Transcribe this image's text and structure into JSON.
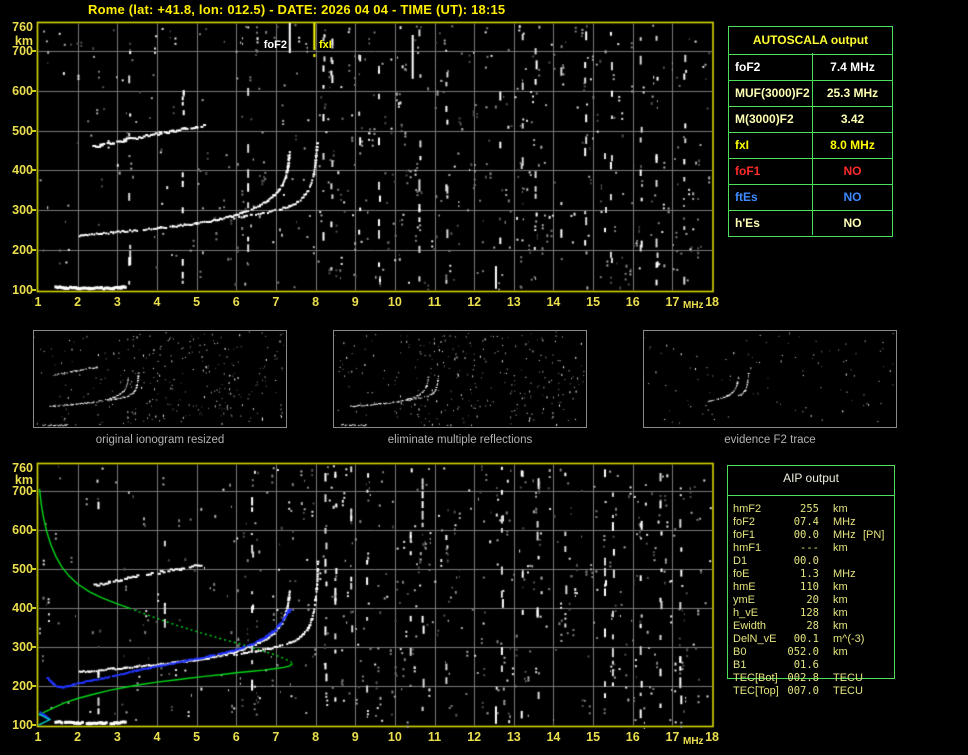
{
  "title": "Rome (lat: +41.8, lon: 012.5) - DATE: 2026 04 04 - TIME (UT): 18:15",
  "axes": {
    "x_ticks": [
      1,
      2,
      3,
      4,
      5,
      6,
      7,
      8,
      9,
      10,
      11,
      12,
      13,
      14,
      15,
      16,
      17,
      18
    ],
    "y_ticks": [
      760,
      700,
      600,
      500,
      400,
      300,
      200,
      100
    ],
    "x_unit": "MHz",
    "y_unit": "km"
  },
  "colors": {
    "title": "#ffee00",
    "axis_label": "#ecdf4e",
    "plot_border": "#d8d800",
    "grid": "#787878",
    "table_border": "#4ce05c",
    "trace_white": "#ffffff",
    "trace_blue": "#2235ff",
    "profile_green": "#00d818",
    "valley_cyan": "#00c8c8",
    "caption_gray": "#b2b2b2",
    "aip_text": "#e4e47e"
  },
  "autoscala_table": {
    "title": "AUTOSCALA output",
    "rows": [
      {
        "label": "foF2",
        "value": "7.4 MHz",
        "color": "white"
      },
      {
        "label": "MUF(3000)F2",
        "value": "25.3 MHz",
        "color": "pale"
      },
      {
        "label": "M(3000)F2",
        "value": "3.42",
        "color": "pale"
      },
      {
        "label": "fxI",
        "value": "8.0 MHz",
        "color": "yellow"
      },
      {
        "label": "foF1",
        "value": "NO",
        "color": "red"
      },
      {
        "label": "ftEs",
        "value": "NO",
        "color": "blue"
      },
      {
        "label": "h'Es",
        "value": "NO",
        "color": "pale"
      }
    ]
  },
  "aip_table": {
    "title": "AIP output",
    "rows": [
      {
        "label": "hmF2",
        "value": "255",
        "unit": "km",
        "extra": ""
      },
      {
        "label": "foF2",
        "value": "07.4",
        "unit": "MHz",
        "extra": ""
      },
      {
        "label": "foF1",
        "value": "00.0",
        "unit": "MHz",
        "extra": "[PN]"
      },
      {
        "label": "hmF1",
        "value": "---",
        "unit": "km",
        "extra": ""
      },
      {
        "label": "D1",
        "value": "00.0",
        "unit": "",
        "extra": ""
      },
      {
        "label": "foE",
        "value": "1.3",
        "unit": "MHz",
        "extra": ""
      },
      {
        "label": "hmE",
        "value": "110",
        "unit": "km",
        "extra": ""
      },
      {
        "label": "ymE",
        "value": "20",
        "unit": "km",
        "extra": ""
      },
      {
        "label": "h_vE",
        "value": "128",
        "unit": "km",
        "extra": ""
      },
      {
        "label": "Ewidth",
        "value": "28",
        "unit": "km",
        "extra": ""
      },
      {
        "label": "DelN_vE",
        "value": "00.1",
        "unit": "m^(-3)",
        "extra": ""
      },
      {
        "label": "B0",
        "value": "052.0",
        "unit": "km",
        "extra": ""
      },
      {
        "label": "B1",
        "value": "01.6",
        "unit": "",
        "extra": ""
      },
      {
        "label": "TEC[Bot]",
        "value": "002.8",
        "unit": "TECU",
        "extra": ""
      },
      {
        "label": "TEC[Top]",
        "value": "007.0",
        "unit": "TECU",
        "extra": ""
      }
    ]
  },
  "thumbnails": [
    {
      "caption": "original ionogram resized",
      "series": [
        "E-trace",
        "F2-ordinary",
        "F2-extraordinary",
        "second-hop"
      ]
    },
    {
      "caption": "eliminate multiple reflections",
      "series": [
        "E-trace",
        "F2-ordinary",
        "F2-extraordinary"
      ]
    },
    {
      "caption": "evidence F2 trace",
      "series": [
        "F2-evidence-O",
        "F2-evidence-X"
      ]
    }
  ],
  "chart_data": [
    {
      "id": "ionogram_top",
      "type": "scatter",
      "xlabel": "MHz",
      "ylabel": "km",
      "xlim": [
        1,
        18
      ],
      "ylim": [
        100,
        760
      ],
      "grid": true,
      "markers": {
        "foF2_label": "foF2",
        "fxI_label": "fxI",
        "foF2_MHz": 7.35,
        "fxI_MHz": 7.97
      },
      "series": [
        {
          "name": "E-trace",
          "points": [
            [
              1.45,
              108
            ],
            [
              1.7,
              106
            ],
            [
              2.0,
              105
            ],
            [
              2.3,
              104
            ],
            [
              2.6,
              104
            ],
            [
              2.9,
              105
            ],
            [
              3.1,
              106
            ],
            [
              3.2,
              108
            ]
          ]
        },
        {
          "name": "F2-ordinary",
          "points": [
            [
              2.05,
              236
            ],
            [
              2.3,
              238
            ],
            [
              2.6,
              241
            ],
            [
              2.9,
              244
            ],
            [
              3.2,
              247
            ],
            [
              3.5,
              250
            ],
            [
              3.8,
              253
            ],
            [
              4.1,
              256
            ],
            [
              4.4,
              259
            ],
            [
              4.7,
              263
            ],
            [
              5.0,
              267
            ],
            [
              5.3,
              272
            ],
            [
              5.6,
              278
            ],
            [
              5.9,
              285
            ],
            [
              6.15,
              293
            ],
            [
              6.4,
              302
            ],
            [
              6.6,
              312
            ],
            [
              6.8,
              324
            ],
            [
              6.95,
              336
            ],
            [
              7.08,
              350
            ],
            [
              7.18,
              366
            ],
            [
              7.25,
              384
            ],
            [
              7.3,
              404
            ],
            [
              7.33,
              424
            ],
            [
              7.35,
              445
            ]
          ]
        },
        {
          "name": "F2-extraordinary",
          "points": [
            [
              5.95,
              280
            ],
            [
              6.2,
              284
            ],
            [
              6.5,
              289
            ],
            [
              6.8,
              295
            ],
            [
              7.1,
              302
            ],
            [
              7.35,
              310
            ],
            [
              7.55,
              320
            ],
            [
              7.7,
              333
            ],
            [
              7.82,
              349
            ],
            [
              7.9,
              368
            ],
            [
              7.96,
              392
            ],
            [
              8.0,
              420
            ],
            [
              8.03,
              448
            ],
            [
              8.05,
              468
            ]
          ]
        },
        {
          "name": "second-hop",
          "points": [
            [
              2.3,
              456
            ],
            [
              2.6,
              463
            ],
            [
              2.9,
              470
            ],
            [
              3.2,
              476
            ],
            [
              3.5,
              482
            ],
            [
              3.8,
              488
            ],
            [
              4.1,
              493
            ],
            [
              4.4,
              498
            ],
            [
              4.7,
              504
            ],
            [
              5.0,
              509
            ],
            [
              5.2,
              513
            ]
          ]
        }
      ]
    },
    {
      "id": "ionogram_bottom",
      "type": "scatter",
      "xlabel": "MHz",
      "ylabel": "km",
      "xlim": [
        1,
        18
      ],
      "ylim": [
        100,
        760
      ],
      "grid": true,
      "series": [
        {
          "name": "E-trace",
          "points": [
            [
              1.45,
              108
            ],
            [
              1.7,
              106
            ],
            [
              2.0,
              105
            ],
            [
              2.3,
              104
            ],
            [
              2.6,
              104
            ],
            [
              2.9,
              105
            ],
            [
              3.1,
              106
            ],
            [
              3.2,
              108
            ]
          ]
        },
        {
          "name": "F2-ordinary",
          "points": [
            [
              2.05,
              236
            ],
            [
              2.3,
              238
            ],
            [
              2.6,
              241
            ],
            [
              2.9,
              244
            ],
            [
              3.2,
              247
            ],
            [
              3.5,
              250
            ],
            [
              3.8,
              253
            ],
            [
              4.1,
              256
            ],
            [
              4.4,
              259
            ],
            [
              4.7,
              263
            ],
            [
              5.0,
              267
            ],
            [
              5.3,
              272
            ],
            [
              5.6,
              278
            ],
            [
              5.9,
              285
            ],
            [
              6.15,
              293
            ],
            [
              6.4,
              302
            ],
            [
              6.6,
              312
            ],
            [
              6.8,
              324
            ],
            [
              6.95,
              336
            ],
            [
              7.08,
              350
            ],
            [
              7.18,
              366
            ],
            [
              7.25,
              384
            ],
            [
              7.3,
              404
            ],
            [
              7.33,
              424
            ],
            [
              7.35,
              445
            ]
          ]
        },
        {
          "name": "F2-extraordinary",
          "points": [
            [
              5.95,
              280
            ],
            [
              6.2,
              284
            ],
            [
              6.5,
              289
            ],
            [
              6.8,
              295
            ],
            [
              7.1,
              302
            ],
            [
              7.35,
              310
            ],
            [
              7.55,
              320
            ],
            [
              7.7,
              333
            ],
            [
              7.82,
              349
            ],
            [
              7.9,
              368
            ],
            [
              7.96,
              392
            ],
            [
              8.0,
              420
            ],
            [
              8.03,
              448
            ],
            [
              8.05,
              468
            ],
            [
              8.06,
              500
            ],
            [
              8.06,
              520
            ]
          ]
        },
        {
          "name": "second-hop",
          "points": [
            [
              2.45,
              458
            ],
            [
              2.8,
              466
            ],
            [
              3.1,
              472
            ],
            [
              3.4,
              479
            ],
            [
              3.7,
              485
            ],
            [
              4.0,
              490
            ],
            [
              4.3,
              496
            ],
            [
              4.6,
              501
            ],
            [
              4.9,
              506
            ],
            [
              5.1,
              510
            ]
          ]
        },
        {
          "name": "scaled-trace-blue",
          "points": [
            [
              1.25,
              220
            ],
            [
              1.33,
              211
            ],
            [
              1.42,
              203
            ],
            [
              1.52,
              198
            ],
            [
              1.62,
              197
            ],
            [
              1.75,
              200
            ],
            [
              1.9,
              204
            ],
            [
              2.1,
              209
            ],
            [
              2.35,
              214
            ],
            [
              2.6,
              219
            ],
            [
              2.9,
              226
            ],
            [
              3.2,
              233
            ],
            [
              3.5,
              240
            ],
            [
              3.8,
              246
            ],
            [
              4.1,
              252
            ],
            [
              4.4,
              258
            ],
            [
              4.7,
              264
            ],
            [
              5.0,
              270
            ],
            [
              5.3,
              276
            ],
            [
              5.6,
              283
            ],
            [
              5.9,
              290
            ],
            [
              6.15,
              298
            ],
            [
              6.4,
              307
            ],
            [
              6.6,
              317
            ],
            [
              6.8,
              329
            ],
            [
              6.95,
              341
            ],
            [
              7.08,
              355
            ],
            [
              7.18,
              369
            ],
            [
              7.28,
              384
            ],
            [
              7.35,
              396
            ]
          ]
        },
        {
          "name": "scaled-E-blue",
          "points": [
            [
              1.06,
              131
            ],
            [
              1.13,
              126
            ],
            [
              1.2,
              121
            ],
            [
              1.26,
              116
            ]
          ]
        },
        {
          "name": "profile-topside-green",
          "points": [
            [
              1.04,
              706
            ],
            [
              1.08,
              668
            ],
            [
              1.14,
              632
            ],
            [
              1.22,
              597
            ],
            [
              1.32,
              564
            ],
            [
              1.45,
              533
            ],
            [
              1.6,
              506
            ],
            [
              1.78,
              483
            ],
            [
              2.0,
              462
            ],
            [
              2.3,
              442
            ],
            [
              2.6,
              427
            ],
            [
              2.95,
              413
            ],
            [
              3.3,
              400
            ]
          ]
        },
        {
          "name": "profile-topside-dashed",
          "points": [
            [
              3.3,
              400
            ],
            [
              3.7,
              385
            ],
            [
              4.1,
              370
            ],
            [
              4.5,
              356
            ],
            [
              4.9,
              343
            ],
            [
              5.3,
              331
            ],
            [
              5.7,
              319
            ],
            [
              6.1,
              308
            ],
            [
              6.5,
              296
            ],
            [
              6.9,
              283
            ],
            [
              7.15,
              273
            ],
            [
              7.3,
              266
            ],
            [
              7.4,
              261
            ]
          ]
        },
        {
          "name": "profile-bottomside-green",
          "points": [
            [
              7.42,
              258
            ],
            [
              7.35,
              252
            ],
            [
              7.2,
              248
            ],
            [
              7.0,
              245
            ],
            [
              6.7,
              241
            ],
            [
              6.4,
              238
            ],
            [
              6.0,
              234
            ],
            [
              5.6,
              229
            ],
            [
              5.2,
              225
            ],
            [
              4.8,
              220
            ],
            [
              4.4,
              215
            ],
            [
              4.0,
              210
            ],
            [
              3.6,
              204
            ],
            [
              3.2,
              197
            ],
            [
              2.8,
              189
            ],
            [
              2.4,
              179
            ],
            [
              2.0,
              168
            ],
            [
              1.7,
              158
            ],
            [
              1.5,
              149
            ],
            [
              1.35,
              142
            ],
            [
              1.2,
              135
            ],
            [
              1.1,
              130
            ],
            [
              1.02,
              126
            ]
          ]
        },
        {
          "name": "E-valley-cyan",
          "points": [
            [
              1.02,
              128
            ],
            [
              1.3,
              114
            ],
            [
              1.02,
              100
            ]
          ]
        }
      ]
    }
  ]
}
